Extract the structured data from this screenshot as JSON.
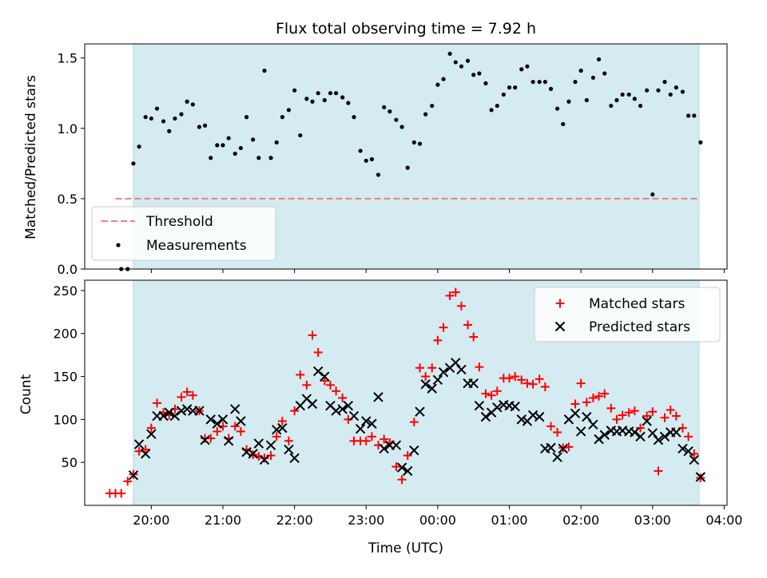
{
  "title": "Flux total observing time = 7.92 h",
  "colors": {
    "band": "#d4ebf1",
    "band_edge": "#b0d8e3",
    "threshold": "#f08080",
    "measurement": "#000000",
    "matched": "#ff0000",
    "predicted": "#000000"
  },
  "chart_data": [
    {
      "type": "scatter",
      "ylabel": "Matched/Predicted stars",
      "ylim": [
        0,
        1.6
      ],
      "xlim": [
        19.07,
        28.04
      ],
      "yticks": [
        0,
        0.5,
        1.0,
        1.5
      ],
      "ytick_labels": [
        "0.0",
        "0.5",
        "1.0",
        "1.5"
      ],
      "grid": false,
      "legend": {
        "position": "lower-left",
        "entries": [
          "Threshold",
          "Measurements"
        ]
      },
      "observing_window": [
        19.75,
        27.65
      ],
      "threshold": {
        "name": "Threshold",
        "value": 0.5,
        "x_range": [
          19.5,
          27.65
        ]
      },
      "series": [
        {
          "name": "Measurements",
          "x": [
            19.58,
            19.67,
            19.75,
            19.83,
            19.92,
            20.0,
            20.08,
            20.17,
            20.25,
            20.33,
            20.42,
            20.5,
            20.58,
            20.67,
            20.75,
            20.83,
            20.92,
            21.0,
            21.08,
            21.17,
            21.25,
            21.33,
            21.42,
            21.5,
            21.58,
            21.67,
            21.75,
            21.83,
            21.92,
            22.0,
            22.08,
            22.17,
            22.25,
            22.33,
            22.42,
            22.5,
            22.58,
            22.67,
            22.75,
            22.83,
            22.92,
            23.0,
            23.08,
            23.17,
            23.25,
            23.33,
            23.42,
            23.5,
            23.58,
            23.67,
            23.75,
            23.83,
            23.92,
            24.0,
            24.08,
            24.17,
            24.25,
            24.33,
            24.42,
            24.5,
            24.58,
            24.67,
            24.75,
            24.83,
            24.92,
            25.0,
            25.08,
            25.17,
            25.25,
            25.33,
            25.42,
            25.5,
            25.58,
            25.67,
            25.75,
            25.83,
            25.92,
            26.0,
            26.08,
            26.17,
            26.25,
            26.33,
            26.42,
            26.5,
            26.58,
            26.67,
            26.75,
            26.83,
            26.92,
            27.0,
            27.08,
            27.17,
            27.25,
            27.33,
            27.42,
            27.5,
            27.58,
            27.67
          ],
          "y": [
            0.0,
            0.0,
            0.75,
            0.87,
            1.08,
            1.07,
            1.14,
            1.05,
            0.98,
            1.07,
            1.1,
            1.19,
            1.17,
            1.01,
            1.02,
            0.79,
            0.88,
            0.88,
            0.93,
            0.82,
            0.86,
            1.08,
            0.92,
            0.79,
            1.41,
            0.79,
            0.9,
            1.08,
            1.13,
            1.27,
            0.95,
            1.21,
            1.19,
            1.25,
            1.2,
            1.25,
            1.25,
            1.22,
            1.18,
            1.08,
            0.84,
            0.77,
            0.78,
            0.67,
            1.15,
            1.12,
            1.06,
            1.01,
            0.72,
            0.9,
            0.89,
            1.1,
            1.16,
            1.31,
            1.35,
            1.53,
            1.47,
            1.44,
            1.48,
            1.38,
            1.39,
            1.32,
            1.13,
            1.16,
            1.24,
            1.29,
            1.29,
            1.42,
            1.44,
            1.33,
            1.33,
            1.33,
            1.28,
            1.14,
            1.03,
            1.19,
            1.33,
            1.41,
            1.2,
            1.36,
            1.49,
            1.39,
            1.16,
            1.2,
            1.24,
            1.24,
            1.21,
            1.16,
            1.27,
            0.53,
            1.27,
            1.33,
            1.24,
            1.29,
            1.26,
            1.09,
            1.09,
            0.9
          ]
        }
      ]
    },
    {
      "type": "scatter",
      "xlabel": "Time (UTC)",
      "ylabel": "Count",
      "ylim": [
        0,
        262
      ],
      "xlim": [
        19.07,
        28.04
      ],
      "yticks": [
        50,
        100,
        150,
        200,
        250
      ],
      "ytick_labels": [
        "50",
        "100",
        "150",
        "200",
        "250"
      ],
      "xticks": [
        20,
        21,
        22,
        23,
        24,
        25,
        26,
        27,
        28
      ],
      "xtick_labels": [
        "20:00",
        "21:00",
        "22:00",
        "23:00",
        "00:00",
        "01:00",
        "02:00",
        "03:00",
        "04:00"
      ],
      "grid": false,
      "legend": {
        "position": "top-right",
        "entries": [
          "Matched stars",
          "Predicted stars"
        ]
      },
      "observing_window": [
        19.75,
        27.65
      ],
      "series": [
        {
          "name": "Matched stars",
          "marker": "plus",
          "x": [
            19.42,
            19.5,
            19.58,
            19.67,
            19.75,
            19.83,
            19.92,
            20.0,
            20.08,
            20.17,
            20.25,
            20.33,
            20.42,
            20.5,
            20.58,
            20.67,
            20.75,
            20.83,
            20.92,
            21.0,
            21.08,
            21.17,
            21.25,
            21.33,
            21.42,
            21.5,
            21.58,
            21.67,
            21.75,
            21.83,
            21.92,
            22.0,
            22.08,
            22.17,
            22.25,
            22.33,
            22.42,
            22.5,
            22.58,
            22.67,
            22.75,
            22.83,
            22.92,
            23.0,
            23.08,
            23.17,
            23.25,
            23.33,
            23.42,
            23.5,
            23.58,
            23.67,
            23.75,
            23.83,
            23.92,
            24.0,
            24.08,
            24.17,
            24.25,
            24.33,
            24.42,
            24.5,
            24.58,
            24.67,
            24.75,
            24.83,
            24.92,
            25.0,
            25.08,
            25.17,
            25.25,
            25.33,
            25.42,
            25.5,
            25.58,
            25.67,
            25.75,
            25.83,
            25.92,
            26.0,
            26.08,
            26.17,
            26.25,
            26.33,
            26.42,
            26.5,
            26.58,
            26.67,
            26.75,
            26.83,
            26.92,
            27.0,
            27.08,
            27.17,
            27.25,
            27.33,
            27.42,
            27.5,
            27.58,
            27.67
          ],
          "y": [
            14,
            14,
            14,
            28,
            36,
            63,
            65,
            90,
            119,
            108,
            105,
            112,
            126,
            132,
            128,
            110,
            78,
            78,
            86,
            92,
            78,
            92,
            86,
            65,
            59,
            57,
            55,
            58,
            80,
            98,
            75,
            110,
            152,
            140,
            198,
            178,
            145,
            140,
            133,
            125,
            100,
            75,
            75,
            75,
            80,
            70,
            77,
            73,
            45,
            30,
            58,
            97,
            160,
            150,
            160,
            192,
            207,
            244,
            248,
            232,
            210,
            196,
            161,
            130,
            128,
            133,
            148,
            148,
            150,
            146,
            142,
            141,
            147,
            138,
            92,
            85,
            67,
            68,
            118,
            142,
            120,
            125,
            127,
            130,
            113,
            100,
            105,
            108,
            110,
            90,
            104,
            109,
            40,
            102,
            111,
            104,
            90,
            80,
            60,
            32
          ]
        },
        {
          "name": "Predicted stars",
          "marker": "x",
          "x": [
            19.75,
            19.83,
            19.92,
            20.0,
            20.08,
            20.17,
            20.25,
            20.33,
            20.42,
            20.5,
            20.58,
            20.67,
            20.75,
            20.83,
            20.92,
            21.0,
            21.08,
            21.17,
            21.25,
            21.33,
            21.42,
            21.5,
            21.58,
            21.67,
            21.75,
            21.83,
            21.92,
            22.0,
            22.08,
            22.17,
            22.25,
            22.33,
            22.42,
            22.5,
            22.58,
            22.67,
            22.75,
            22.83,
            22.92,
            23.0,
            23.08,
            23.17,
            23.25,
            23.33,
            23.42,
            23.5,
            23.58,
            23.67,
            23.75,
            23.83,
            23.92,
            24.0,
            24.08,
            24.17,
            24.25,
            24.33,
            24.42,
            24.5,
            24.58,
            24.67,
            24.75,
            24.83,
            24.92,
            25.0,
            25.08,
            25.17,
            25.25,
            25.33,
            25.42,
            25.5,
            25.58,
            25.67,
            25.75,
            25.83,
            25.92,
            26.0,
            26.08,
            26.17,
            26.25,
            26.33,
            26.42,
            26.5,
            26.58,
            26.67,
            26.75,
            26.83,
            26.92,
            27.0,
            27.08,
            27.17,
            27.25,
            27.33,
            27.42,
            27.5,
            27.58,
            27.67
          ],
          "y": [
            35,
            71,
            60,
            83,
            104,
            104,
            108,
            104,
            110,
            112,
            110,
            110,
            76,
            100,
            95,
            100,
            75,
            112,
            98,
            62,
            60,
            72,
            53,
            70,
            88,
            90,
            65,
            55,
            116,
            124,
            118,
            156,
            150,
            116,
            110,
            112,
            116,
            104,
            89,
            98,
            95,
            126,
            66,
            70,
            70,
            44,
            40,
            64,
            109,
            141,
            136,
            146,
            155,
            160,
            166,
            158,
            142,
            142,
            116,
            103,
            108,
            114,
            117,
            116,
            115,
            100,
            98,
            105,
            103,
            66,
            67,
            56,
            66,
            100,
            107,
            86,
            103,
            94,
            77,
            82,
            87,
            86,
            87,
            86,
            85,
            80,
            98,
            84,
            76,
            80,
            85,
            85,
            66,
            63,
            53,
            33
          ]
        }
      ]
    }
  ]
}
